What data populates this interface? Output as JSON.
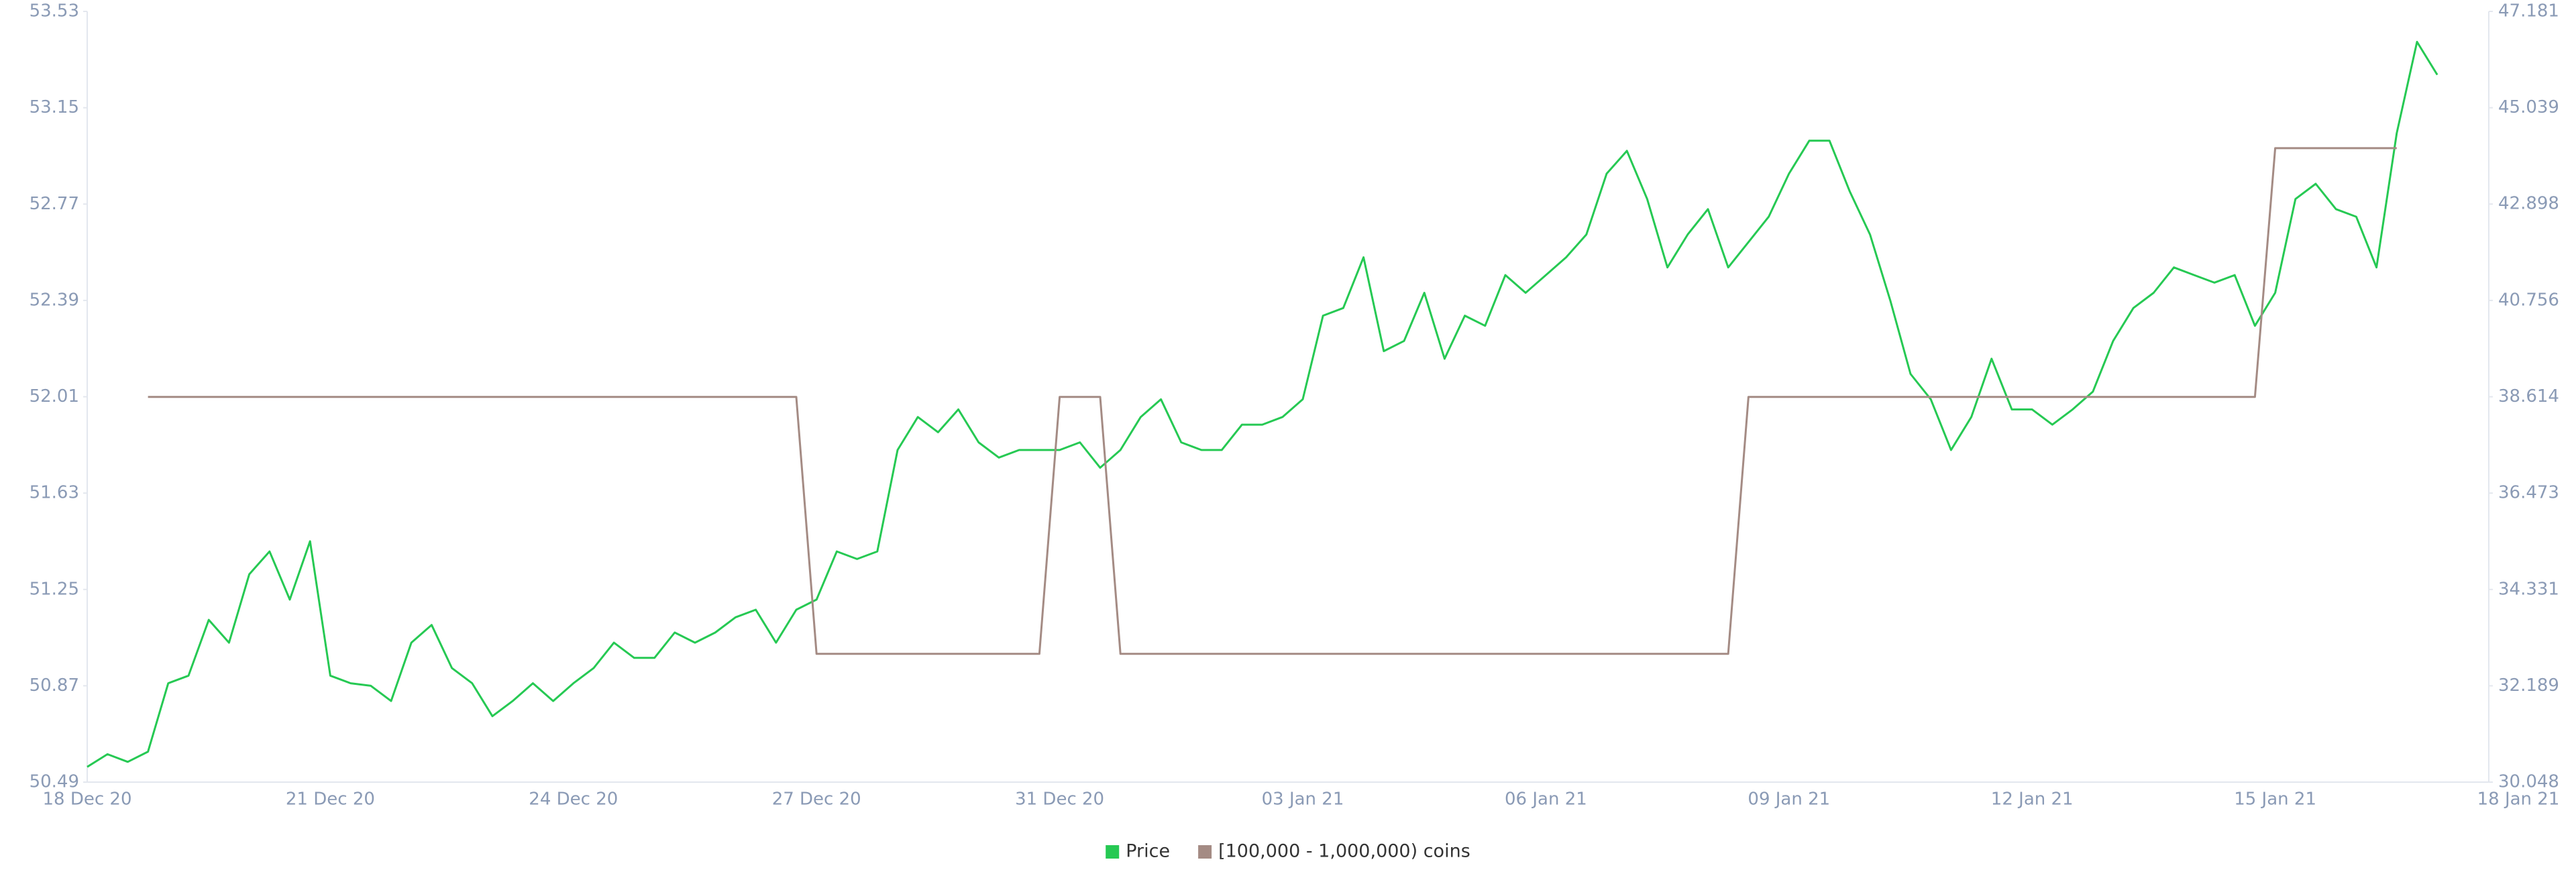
{
  "chart_data": {
    "type": "line",
    "categories": [
      "18 Dec 20",
      null,
      null,
      null,
      null,
      null,
      null,
      null,
      null,
      null,
      null,
      null,
      "21 Dec 20",
      null,
      null,
      null,
      null,
      null,
      null,
      null,
      null,
      null,
      null,
      null,
      "24 Dec 20",
      null,
      null,
      null,
      null,
      null,
      null,
      null,
      null,
      null,
      null,
      null,
      "27 Dec 20",
      null,
      null,
      null,
      null,
      null,
      null,
      null,
      null,
      null,
      null,
      null,
      "31 Dec 20",
      null,
      null,
      null,
      null,
      null,
      null,
      null,
      null,
      null,
      null,
      null,
      "03 Jan 21",
      null,
      null,
      null,
      null,
      null,
      null,
      null,
      null,
      null,
      null,
      null,
      "06 Jan 21",
      null,
      null,
      null,
      null,
      null,
      null,
      null,
      null,
      null,
      null,
      null,
      "09 Jan 21",
      null,
      null,
      null,
      null,
      null,
      null,
      null,
      null,
      null,
      null,
      null,
      "12 Jan 21",
      null,
      null,
      null,
      null,
      null,
      null,
      null,
      null,
      null,
      null,
      null,
      "15 Jan 21",
      null,
      null,
      null,
      null,
      null,
      null,
      null,
      null,
      null,
      null,
      null,
      "18 Jan 21"
    ],
    "series": [
      {
        "name": "Price",
        "color": "#26c953",
        "values": [
          50.55,
          50.6,
          50.57,
          50.61,
          50.88,
          50.91,
          51.13,
          51.04,
          51.31,
          51.4,
          51.21,
          51.44,
          50.91,
          50.88,
          50.87,
          50.81,
          51.04,
          51.11,
          50.94,
          50.88,
          50.75,
          50.81,
          50.88,
          50.81,
          50.88,
          50.94,
          51.04,
          50.98,
          50.98,
          51.08,
          51.04,
          51.08,
          51.14,
          51.17,
          51.04,
          51.17,
          51.21,
          51.4,
          51.37,
          51.4,
          51.8,
          51.93,
          51.87,
          51.96,
          51.83,
          51.77,
          51.8,
          51.8,
          51.8,
          51.83,
          51.73,
          51.8,
          51.93,
          52.0,
          51.83,
          51.8,
          51.8,
          51.9,
          51.9,
          51.93,
          52.0,
          52.33,
          52.36,
          52.56,
          52.19,
          52.23,
          52.42,
          52.16,
          52.33,
          52.29,
          52.49,
          52.42,
          52.49,
          52.56,
          52.65,
          52.89,
          52.98,
          52.79,
          52.52,
          52.65,
          52.75,
          52.52,
          52.62,
          52.72,
          52.89,
          53.02,
          53.02,
          52.82,
          52.65,
          52.39,
          52.1,
          52.0,
          51.8,
          51.93,
          52.16,
          51.96,
          51.96,
          51.9,
          51.96,
          52.03,
          52.23,
          52.36,
          52.42,
          52.52,
          52.49,
          52.46,
          52.49,
          52.29,
          52.42,
          52.79,
          52.85,
          52.75,
          52.72,
          52.52,
          53.05,
          53.41,
          53.28,
          null,
          null,
          null,
          null
        ]
      },
      {
        "name": "[100,000 - 1,000,000) coins",
        "color": "#a48b84",
        "axis": "y2",
        "values": [
          null,
          null,
          null,
          38.61,
          38.61,
          38.61,
          38.61,
          38.61,
          38.61,
          38.61,
          38.61,
          38.61,
          38.61,
          38.61,
          38.61,
          38.61,
          38.61,
          38.61,
          38.61,
          38.61,
          38.61,
          38.61,
          38.61,
          38.61,
          38.61,
          38.61,
          38.61,
          38.61,
          38.61,
          38.61,
          38.61,
          38.61,
          38.61,
          38.61,
          38.61,
          38.61,
          32.9,
          32.9,
          32.9,
          32.9,
          32.9,
          32.9,
          32.9,
          32.9,
          32.9,
          32.9,
          32.9,
          32.9,
          38.61,
          38.61,
          38.61,
          32.9,
          32.9,
          32.9,
          32.9,
          32.9,
          32.9,
          32.9,
          32.9,
          32.9,
          32.9,
          32.9,
          32.9,
          32.9,
          32.9,
          32.9,
          32.9,
          32.9,
          32.9,
          32.9,
          32.9,
          32.9,
          32.9,
          32.9,
          32.9,
          32.9,
          32.9,
          32.9,
          32.9,
          32.9,
          32.9,
          32.9,
          38.61,
          38.61,
          38.61,
          38.61,
          38.61,
          38.61,
          38.61,
          38.61,
          38.61,
          38.61,
          38.61,
          38.61,
          38.61,
          38.61,
          38.61,
          38.61,
          38.61,
          38.61,
          38.61,
          38.61,
          38.61,
          38.61,
          38.61,
          38.61,
          38.61,
          38.61,
          44.14,
          44.14,
          44.14,
          44.14,
          44.14,
          44.14,
          44.14,
          null,
          null,
          null,
          null,
          null,
          null
        ]
      }
    ],
    "ylim": [
      50.49,
      53.53
    ],
    "yticks": [
      50.49,
      50.87,
      51.25,
      51.63,
      52.01,
      52.39,
      52.77,
      53.15,
      53.53
    ],
    "y2lim": [
      30.048,
      47.181
    ],
    "y2ticks": [
      30.048,
      32.189,
      34.331,
      36.473,
      38.614,
      40.756,
      42.898,
      45.039,
      47.181
    ],
    "legend": "bottom"
  }
}
